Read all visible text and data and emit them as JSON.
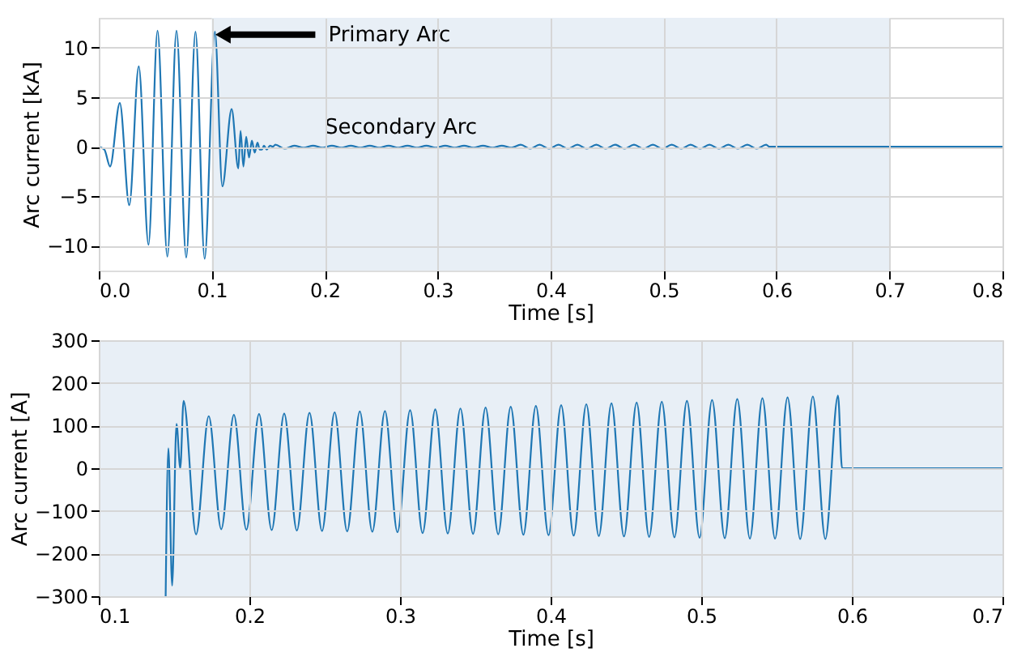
{
  "chart_data": [
    {
      "type": "line",
      "xlabel": "Time [s]",
      "ylabel": "Arc current [kA]",
      "xlim": [
        0,
        0.8
      ],
      "xticks": [
        {
          "value": 0,
          "label": "0.0"
        },
        0.1,
        0.2,
        0.3,
        0.4,
        0.5,
        0.6,
        0.7,
        0.8
      ],
      "ylim": [
        -12.5,
        13
      ],
      "yticks": [
        -10,
        -5,
        0,
        5,
        10
      ],
      "grid": true,
      "bands": [
        {
          "axis": "x",
          "from": 0.1,
          "to": 0.7,
          "color": "#e8eff6"
        }
      ],
      "annotations": [
        {
          "text": "Primary Arc",
          "x": 0.1028,
          "y": 11.3
        },
        {
          "text": "Secondary Arc",
          "x": 0.2,
          "y": 0.8
        }
      ],
      "x": [
        0,
        0.005,
        0.01,
        0.0186,
        0.027,
        0.0354,
        0.044,
        0.052,
        0.0607,
        0.0688,
        0.0774,
        0.0856,
        0.0937,
        0.1028,
        0.1094,
        0.1176,
        0.1235,
        0.1255,
        0.128,
        0.1305,
        0.133,
        0.1355,
        0.138,
        0.1405,
        0.1425,
        0.1444,
        0.1462,
        0.1487,
        0.1516,
        0.1541,
        0.1563,
        0.1646,
        0.173,
        0.1813,
        0.1897,
        0.198,
        0.2064,
        0.2148,
        0.2231,
        0.2315,
        0.2399,
        0.2482,
        0.2566,
        0.2649,
        0.2733,
        0.2816,
        0.29,
        0.2983,
        0.3067,
        0.315,
        0.3234,
        0.3317,
        0.3401,
        0.3485,
        0.3568,
        0.3652,
        0.3735,
        0.3819,
        0.3902,
        0.3986,
        0.407,
        0.4153,
        0.4237,
        0.432,
        0.4404,
        0.4487,
        0.4571,
        0.4654,
        0.4738,
        0.4822,
        0.4905,
        0.4989,
        0.5072,
        0.5156,
        0.5239,
        0.5323,
        0.5406,
        0.549,
        0.5573,
        0.5657,
        0.5741,
        0.5824,
        0.5908,
        0.5935,
        0.7,
        0.8
      ],
      "series": [
        {
          "color": "#1f77b4",
          "values": [
            0,
            -0.3,
            -2.0,
            4.4,
            -5.9,
            8.1,
            -9.9,
            11.7,
            -11.1,
            11.7,
            -11.2,
            11.6,
            -11.3,
            11.6,
            -4.0,
            3.8,
            -2.2,
            1.6,
            -2.0,
            1.0,
            -1.1,
            0.6,
            -0.6,
            0.4,
            -0.3,
            -0.3,
            0.1,
            -0.3,
            0.1,
            0.0,
            0.2,
            -0.2,
            0.1,
            -0.1,
            0.1,
            -0.1,
            0.1,
            -0.1,
            0.1,
            -0.1,
            0.1,
            -0.1,
            0.1,
            -0.1,
            0.1,
            -0.1,
            0.1,
            -0.1,
            0.1,
            -0.1,
            0.1,
            -0.1,
            0.1,
            -0.1,
            0.1,
            -0.1,
            0.2,
            -0.2,
            0.2,
            -0.2,
            0.2,
            -0.2,
            0.2,
            -0.2,
            0.2,
            -0.2,
            0.2,
            -0.2,
            0.2,
            -0.2,
            0.2,
            -0.2,
            0.2,
            -0.2,
            0.2,
            -0.2,
            0.2,
            -0.2,
            0.2,
            -0.2,
            0.2,
            -0.2,
            0.2,
            0,
            0,
            0
          ]
        }
      ]
    },
    {
      "type": "line",
      "xlabel": "Time [s]",
      "ylabel": "Arc current [A]",
      "xlim": [
        0.1,
        0.7
      ],
      "xticks": [
        0.1,
        0.2,
        0.3,
        0.4,
        0.5,
        0.6,
        0.7
      ],
      "ylim": [
        -300,
        300
      ],
      "yticks": [
        -300,
        -200,
        -100,
        0,
        100,
        200,
        300
      ],
      "grid": true,
      "bands": [
        {
          "axis": "x",
          "from": 0.1,
          "to": 0.7,
          "color": "#e8eff6"
        }
      ],
      "x": [
        0.1444,
        0.1462,
        0.1487,
        0.1516,
        0.1541,
        0.1563,
        0.1646,
        0.173,
        0.1813,
        0.1897,
        0.198,
        0.2064,
        0.2148,
        0.2231,
        0.2315,
        0.2399,
        0.2482,
        0.2566,
        0.2649,
        0.2733,
        0.2816,
        0.29,
        0.2983,
        0.3067,
        0.315,
        0.3234,
        0.3317,
        0.3401,
        0.3485,
        0.3568,
        0.3652,
        0.3735,
        0.3819,
        0.3902,
        0.3986,
        0.407,
        0.4153,
        0.4237,
        0.432,
        0.4404,
        0.4487,
        0.4571,
        0.4654,
        0.4738,
        0.4822,
        0.4905,
        0.4989,
        0.5072,
        0.5156,
        0.5239,
        0.5323,
        0.5406,
        0.549,
        0.5573,
        0.5657,
        0.5741,
        0.5824,
        0.5908,
        0.5935,
        0.7
      ],
      "series": [
        {
          "color": "#1f77b4",
          "values": [
            -300,
            47,
            -275,
            104,
            0,
            158,
            -155,
            122,
            -143,
            125,
            -144,
            127,
            -145,
            128,
            -146,
            130,
            -147,
            131,
            -148,
            133,
            -149,
            134,
            -150,
            136,
            -152,
            138,
            -153,
            140,
            -154,
            142,
            -155,
            144,
            -156,
            146,
            -157,
            148,
            -158,
            150,
            -159,
            152,
            -160,
            154,
            -161,
            156,
            -162,
            158,
            -163,
            160,
            -164,
            162,
            -165,
            164,
            -165,
            166,
            -166,
            168,
            -166,
            170,
            0,
            0
          ]
        }
      ]
    }
  ]
}
